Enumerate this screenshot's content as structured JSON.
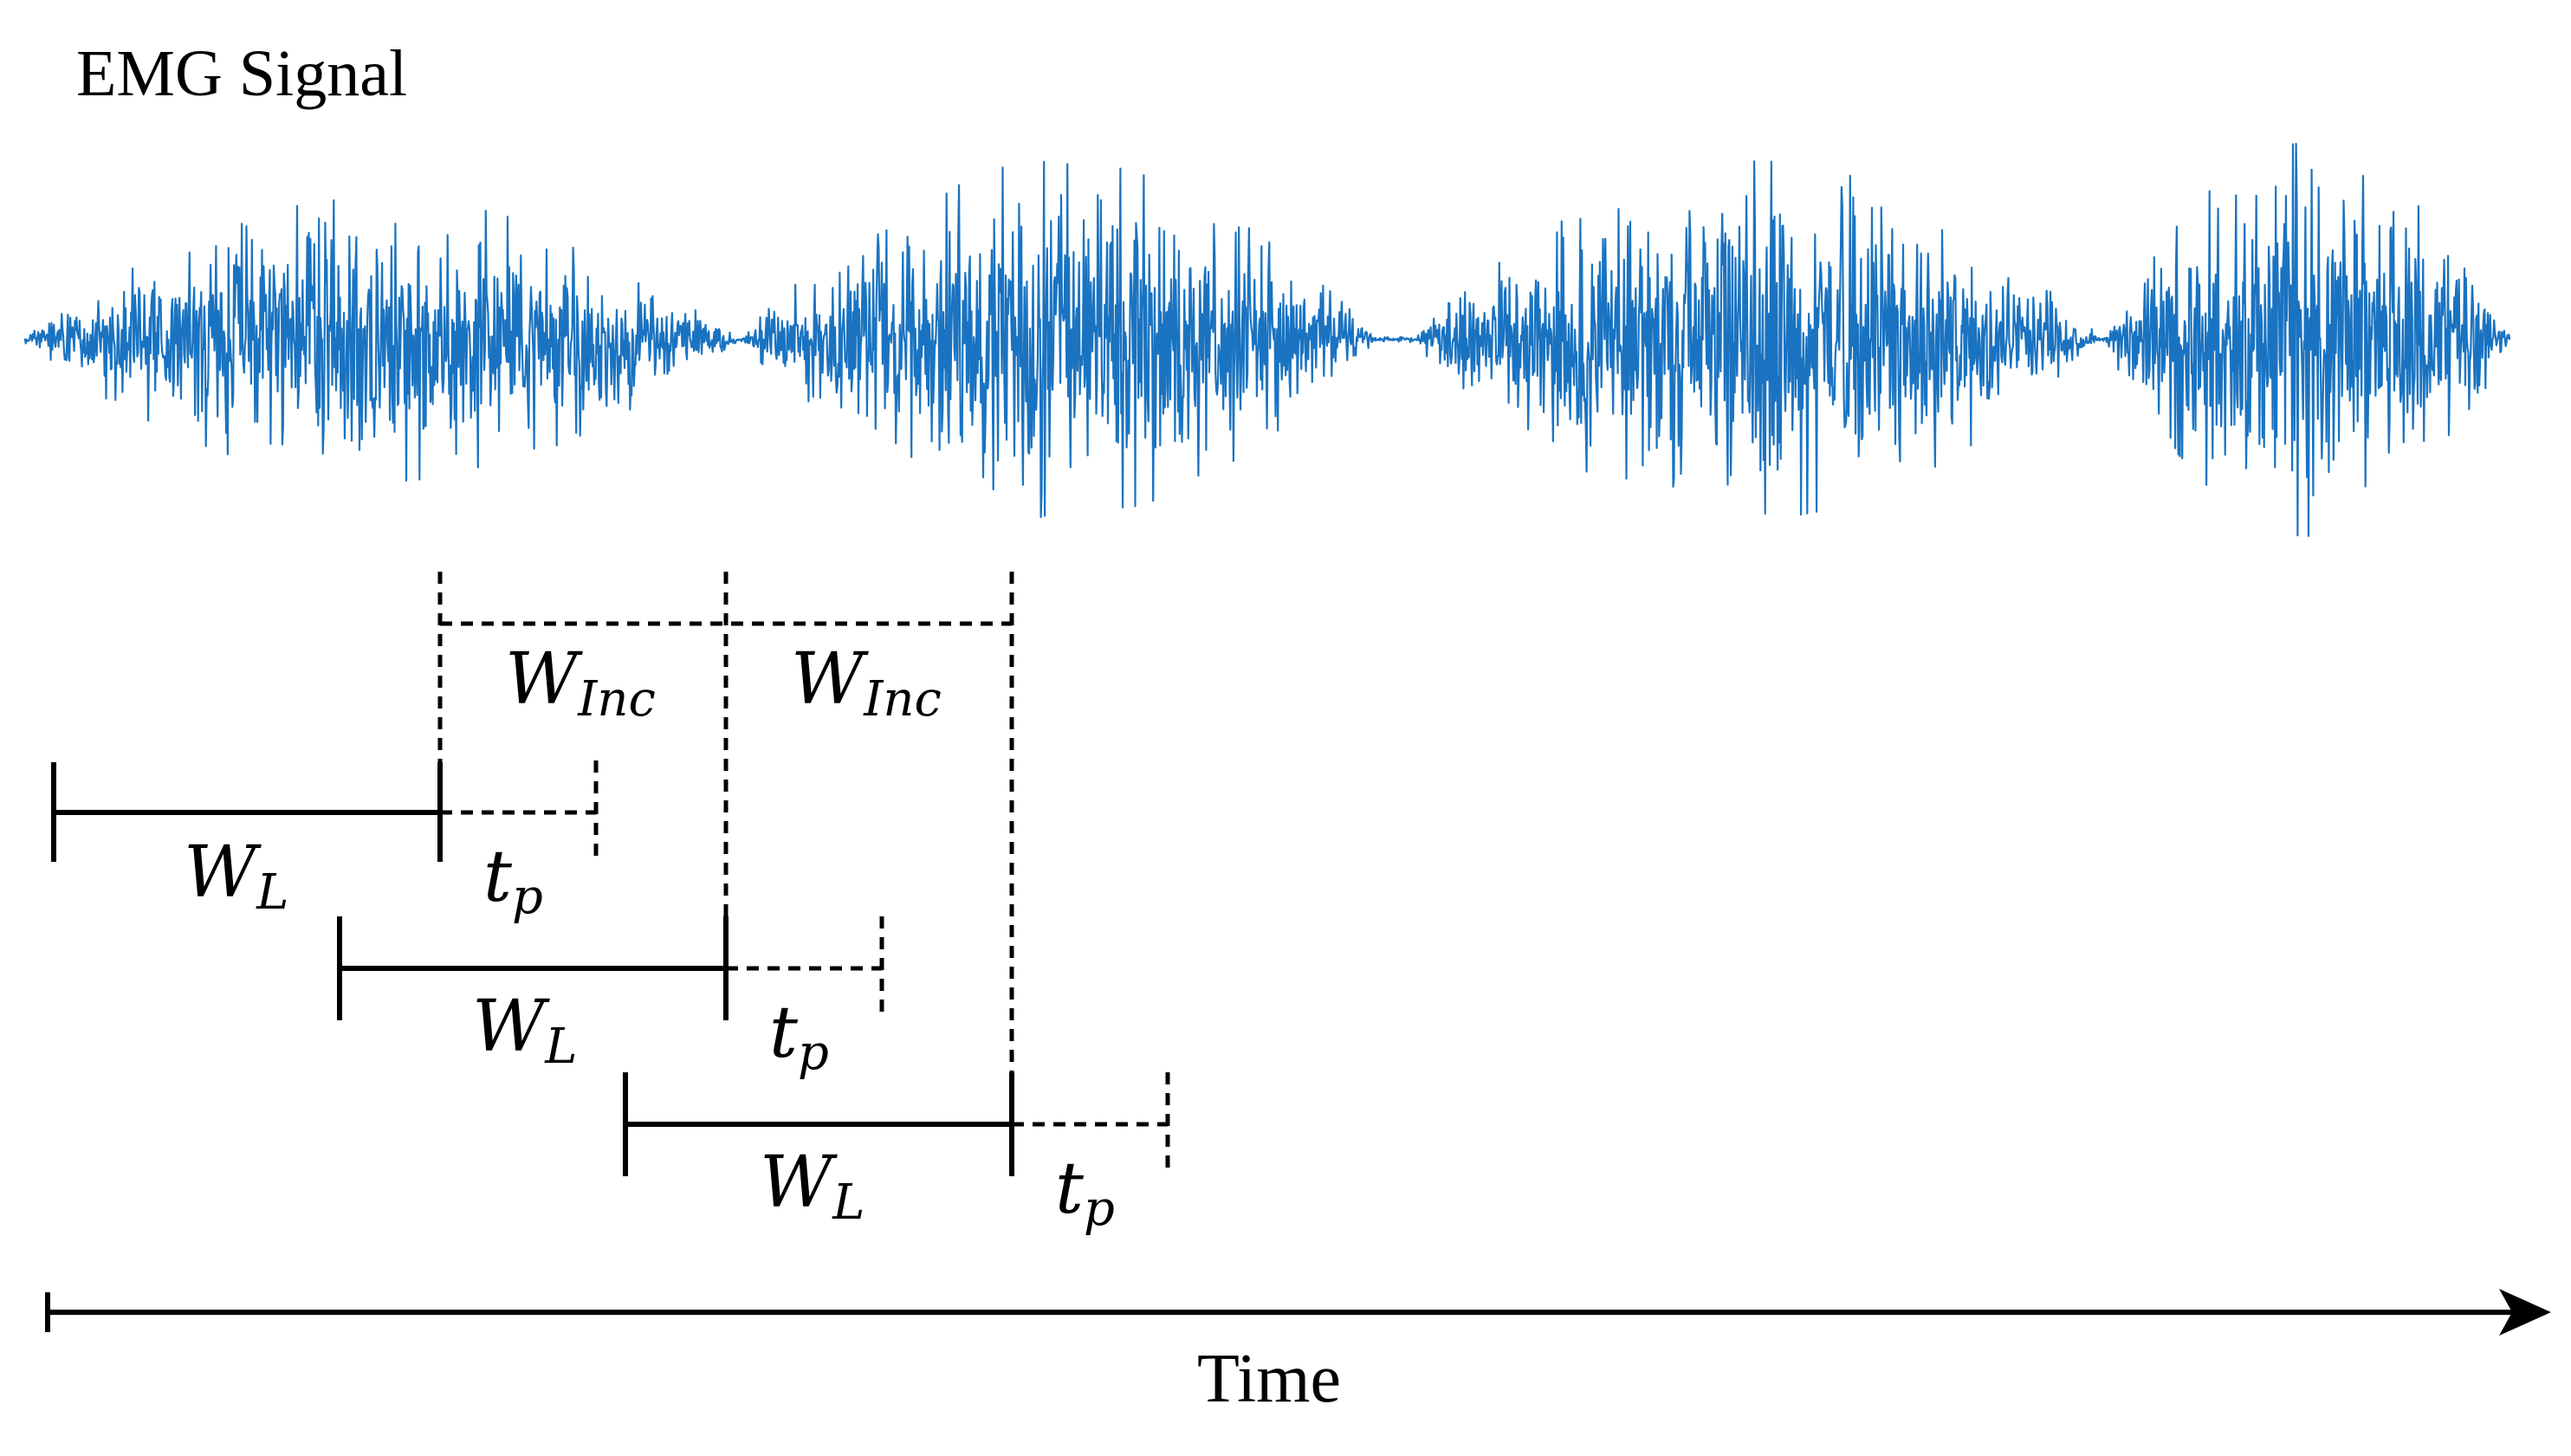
{
  "signal": {
    "title": "EMG Signal",
    "color": "#1a73c1"
  },
  "windows": {
    "length_label": {
      "main": "W",
      "sub": "L"
    },
    "prediction_label": {
      "main": "t",
      "sub": "p"
    },
    "increment_label": {
      "main": "W",
      "sub": "Inc"
    }
  },
  "axis": {
    "label": "Time"
  }
}
